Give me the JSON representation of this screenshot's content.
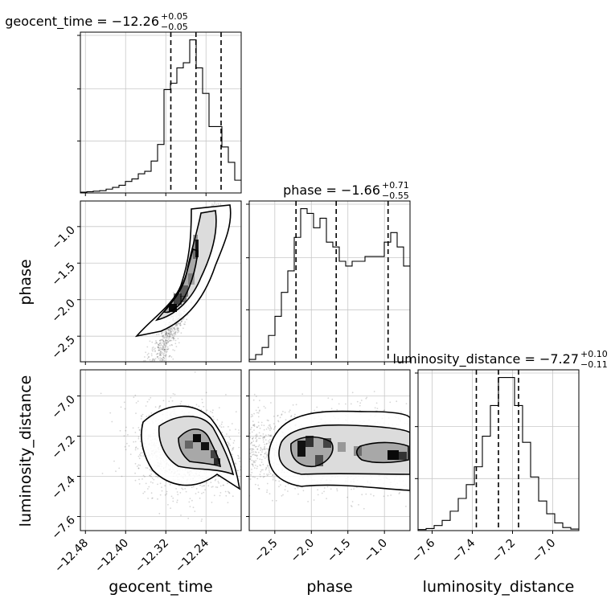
{
  "chart_data": {
    "type": "corner",
    "parameters": [
      "geocent_time",
      "phase",
      "luminosity_distance"
    ],
    "titles": [
      {
        "param": "geocent_time",
        "label": "geocent_time = −12.26",
        "plus": "+0.05",
        "minus": "−0.05"
      },
      {
        "param": "phase",
        "label": "phase = −1.66",
        "plus": "+0.71",
        "minus": "−0.55"
      },
      {
        "param": "luminosity_distance",
        "label": "luminosity_distance = −7.27",
        "plus": "+0.10",
        "minus": "−0.11"
      }
    ],
    "axis_labels": {
      "x": [
        "geocent_time",
        "phase",
        "luminosity_distance"
      ],
      "y": [
        "phase",
        "luminosity_distance"
      ]
    },
    "ranges": {
      "geocent_time": [
        -12.49,
        -12.17
      ],
      "phase": [
        -2.85,
        -0.65
      ],
      "luminosity_distance": [
        -7.67,
        -6.87
      ]
    },
    "ticks": {
      "geocent_time": {
        "values": [
          -12.48,
          -12.4,
          -12.32,
          -12.24
        ],
        "labels": [
          "−12.48",
          "−12.40",
          "−12.32",
          "−12.24"
        ]
      },
      "phase_x": {
        "values": [
          -2.5,
          -2.0,
          -1.5,
          -1.0
        ],
        "labels": [
          "−2.5",
          "−2.0",
          "−1.5",
          "−1.0"
        ]
      },
      "phase_y": {
        "values": [
          -1.0,
          -1.5,
          -2.0,
          -2.5
        ],
        "labels": [
          "−1.0",
          "−1.5",
          "−2.0",
          "−2.5"
        ]
      },
      "luminosity_distance_x": {
        "values": [
          -7.6,
          -7.4,
          -7.2,
          -7.0
        ],
        "labels": [
          "−7.6",
          "−7.4",
          "−7.2",
          "−7.0"
        ]
      },
      "luminosity_distance_y": {
        "values": [
          -7.0,
          -7.2,
          -7.4,
          -7.6
        ],
        "labels": [
          "−7.0",
          "−7.2",
          "−7.4",
          "−7.6"
        ]
      }
    },
    "quantiles": {
      "geocent_time": [
        -12.31,
        -12.26,
        -12.21
      ],
      "phase": [
        -2.21,
        -1.66,
        -0.95
      ],
      "luminosity_distance": [
        -7.38,
        -7.27,
        -7.17
      ]
    },
    "histograms": {
      "geocent_time": {
        "range": [
          -12.49,
          -12.17
        ],
        "counts": [
          0.3,
          0.5,
          0.7,
          0.9,
          1.5,
          2.2,
          3,
          4.5,
          5.5,
          7.5,
          8.5,
          12.5,
          19,
          40.5,
          43,
          49,
          51,
          60,
          49,
          39,
          26,
          26,
          18,
          12,
          5
        ]
      },
      "phase": {
        "range": [
          -2.85,
          -0.65
        ],
        "counts": [
          0.5,
          1.5,
          3,
          5.5,
          9.5,
          14.5,
          19,
          26,
          32,
          31,
          28,
          30,
          25,
          24,
          21,
          20,
          21,
          21,
          22,
          22,
          22,
          25,
          27,
          24,
          20
        ]
      },
      "luminosity_distance": {
        "range": [
          -7.67,
          -6.87
        ],
        "counts": [
          0.2,
          0.4,
          1,
          2,
          3.8,
          6.3,
          9,
          12.5,
          18.5,
          24.5,
          30,
          30,
          24.5,
          17.3,
          10.5,
          5.8,
          3.3,
          1.5,
          0.6,
          0.3
        ]
      }
    },
    "density_2d": [
      {
        "x": "geocent_time",
        "y": "phase",
        "contour_levels": 3,
        "mode_region": {
          "x": [
            -12.31,
            -12.28
          ],
          "y": [
            -2.25,
            -1.8
          ]
        }
      },
      {
        "x": "geocent_time",
        "y": "luminosity_distance",
        "contour_levels": 3,
        "mode_region": {
          "x": [
            -12.26,
            -12.24
          ],
          "y": [
            -7.27,
            -7.2
          ]
        }
      },
      {
        "x": "phase",
        "y": "luminosity_distance",
        "contour_levels": 3,
        "mode_region": {
          "x": [
            -2.2,
            -1.0
          ],
          "y": [
            -7.32,
            -7.22
          ]
        }
      }
    ],
    "grid": true
  }
}
